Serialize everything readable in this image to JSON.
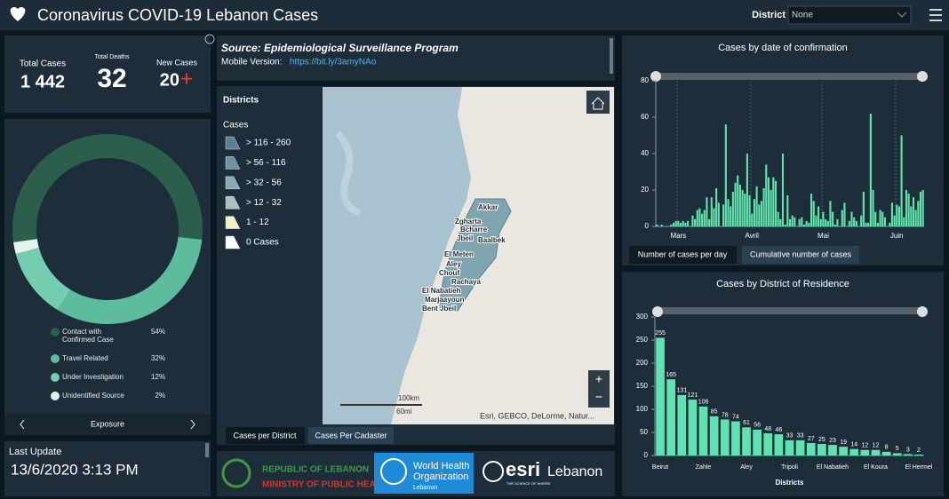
{
  "header": {
    "title": "Coronavirus COVID-19 Lebanon Cases",
    "district_label": "District",
    "district_value": "None"
  },
  "stats": [
    {
      "label": "Total Cases",
      "value": "1 442"
    },
    {
      "label": "Total Deaths",
      "value": "32"
    },
    {
      "label": "New Cases",
      "value": "20",
      "suffix": "+"
    }
  ],
  "exposure_nav": {
    "label": "Exposure"
  },
  "last_update": {
    "label": "Last Update",
    "value": "13/6/2020 3:13 PM"
  },
  "source": {
    "title": "Source: Epidemiological Surveillance Program",
    "mobile_label": "Mobile Version:",
    "link": "https://bit.ly/3amyNAo"
  },
  "map": {
    "legend_title": "Districts",
    "legend_subtitle": "Cases",
    "legend_items": [
      {
        "label": "> 116 - 260",
        "color": "#5b7f93"
      },
      {
        "label": "> 56 - 116",
        "color": "#6f93a4"
      },
      {
        "label": "> 32 - 56",
        "color": "#89a9b4"
      },
      {
        "label": "> 12 - 32",
        "color": "#a9c3c1"
      },
      {
        "label": "1 - 12",
        "color": "#f3edc9"
      },
      {
        "label": "0 Cases",
        "color": "#ffffff"
      }
    ],
    "place_labels": [
      "Akkar",
      "Zgharta",
      "Bcharre",
      "Jbeil",
      "Baalbek",
      "El Meten",
      "Aley",
      "Chouf",
      "Rachaya",
      "El Nabatieh",
      "Marjaayoun",
      "Bent Jbeil"
    ],
    "scale_km": "100km",
    "scale_mi": "60mi",
    "attribution": "Esri, GEBCO, DeLorme, Natur...",
    "tabs": [
      "Cases per District",
      "Cases Per Cadaster"
    ]
  },
  "logos": {
    "moph": [
      "REPUBLIC OF LEBANON",
      "MINISTRY OF PUBLIC HEALTH"
    ],
    "who": [
      "World Health",
      "Organization",
      "Lebanon"
    ],
    "esri": [
      "esri",
      "Lebanon",
      "THE SCIENCE OF WHERE"
    ]
  },
  "chart_tabs": [
    "Number of cases per day",
    "Cumulative number of cases"
  ],
  "chart_data": [
    {
      "type": "pie",
      "donut": true,
      "categories": [
        "Contact with Confirmed Case",
        "Travel Related",
        "Under Investigation",
        "Unidentified Source"
      ],
      "values": [
        54,
        32,
        12,
        2
      ],
      "value_labels": [
        "54%",
        "32%",
        "12%",
        "2%"
      ],
      "colors": [
        "#2b5f4b",
        "#5cbc9c",
        "#74cdb0",
        "#e4f3ec"
      ]
    },
    {
      "type": "bar",
      "title": "Cases by date of confirmation",
      "color": "#5fe3ab",
      "categories": [
        null,
        null,
        null,
        null,
        null,
        null,
        null,
        null,
        null,
        null,
        null,
        null,
        null,
        null,
        null,
        null,
        null,
        null,
        null,
        null,
        null,
        null,
        null,
        null,
        null,
        null,
        null,
        null,
        null,
        null,
        null,
        null,
        null,
        null,
        null,
        null,
        null,
        null,
        null,
        null,
        null,
        null,
        null,
        null,
        null,
        null,
        null,
        null,
        null,
        null,
        null,
        null,
        null,
        null,
        null,
        null,
        null,
        null,
        null,
        null,
        null,
        null,
        null,
        null,
        null,
        null,
        null,
        null,
        null,
        null,
        null,
        null,
        null,
        null,
        null,
        null,
        null,
        null,
        null,
        null,
        null,
        null,
        null,
        null,
        null,
        null,
        null,
        null,
        null,
        null,
        null,
        null,
        null,
        null,
        null,
        null,
        null,
        null,
        null,
        null,
        null,
        null,
        null,
        null,
        null,
        null,
        null,
        null,
        null,
        null,
        null,
        null,
        null
      ],
      "values": [
        1,
        0,
        1,
        0,
        0,
        0,
        1,
        2,
        3,
        3,
        2,
        3,
        2,
        3,
        0,
        6,
        4,
        9,
        10,
        7,
        9,
        16,
        4,
        16,
        10,
        21,
        13,
        0,
        12,
        56,
        15,
        11,
        19,
        24,
        28,
        23,
        20,
        18,
        40,
        17,
        7,
        15,
        22,
        12,
        14,
        21,
        34,
        27,
        20,
        27,
        25,
        8,
        4,
        40,
        1,
        17,
        4,
        6,
        5,
        0,
        4,
        5,
        1,
        3,
        2,
        18,
        14,
        6,
        11,
        4,
        8,
        4,
        3,
        14,
        8,
        1,
        4,
        0,
        9,
        13,
        0,
        3,
        8,
        5,
        3,
        0,
        6,
        19,
        2,
        2,
        62,
        20,
        8,
        2,
        9,
        8,
        5,
        0,
        2,
        13,
        6,
        12,
        11,
        50,
        5,
        20,
        18,
        11,
        16,
        9,
        14,
        19,
        20
      ],
      "xticks": [
        {
          "value": 9,
          "label": "Mars"
        },
        {
          "value": 40,
          "label": "Avril"
        },
        {
          "value": 70,
          "label": "Mai"
        },
        {
          "value": 101,
          "label": "Juin"
        }
      ],
      "ylim": [
        0,
        80
      ],
      "yticks": [
        0,
        20,
        40,
        60,
        80
      ]
    },
    {
      "type": "bar",
      "title": "Cases by District of Residence",
      "x_label": "Districts",
      "color": "#5fe3b0",
      "categories": [
        "Beirut",
        null,
        null,
        null,
        "Zahle",
        null,
        null,
        null,
        "Aley",
        null,
        null,
        null,
        "Tripoli",
        null,
        null,
        null,
        "El Nabatieh",
        null,
        null,
        null,
        "El Koura",
        null,
        null,
        null,
        "El Hermel"
      ],
      "values": [
        255,
        165,
        131,
        121,
        106,
        85,
        78,
        74,
        61,
        56,
        48,
        46,
        33,
        33,
        27,
        25,
        23,
        19,
        14,
        12,
        12,
        8,
        5,
        3,
        2
      ],
      "ylim": [
        0,
        300
      ],
      "yticks": [
        0,
        50,
        100,
        150,
        200,
        250,
        300
      ]
    }
  ]
}
